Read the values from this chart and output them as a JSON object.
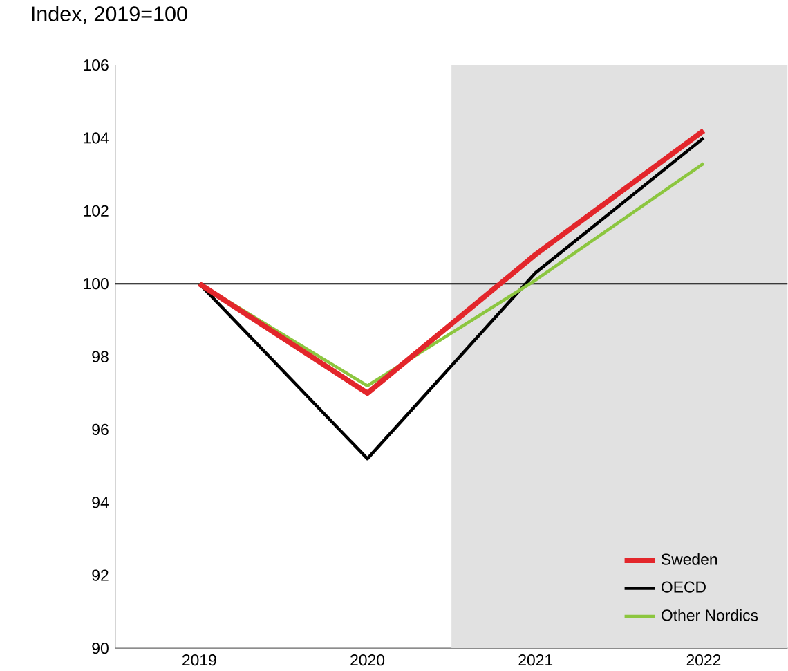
{
  "chart_data": {
    "type": "line",
    "ylabel": "Index, 2019=100",
    "x": [
      2019,
      2020,
      2021,
      2022
    ],
    "series": [
      {
        "name": "Sweden",
        "color": "#e3262b",
        "values": [
          100,
          97.0,
          100.8,
          104.2
        ]
      },
      {
        "name": "OECD",
        "color": "#000000",
        "values": [
          100,
          95.2,
          100.3,
          104.0
        ]
      },
      {
        "name": "Other Nordics",
        "color": "#8cc63f",
        "values": [
          100,
          97.2,
          100.1,
          103.3
        ]
      }
    ],
    "xlim": [
      2018.5,
      2022.5
    ],
    "xticks": [
      2019,
      2020,
      2021,
      2022
    ],
    "ylim": [
      90,
      106
    ],
    "yticks": [
      90,
      92,
      94,
      96,
      98,
      100,
      102,
      104,
      106
    ],
    "ref_lines": [
      {
        "axis": "y",
        "value": 100,
        "color": "#000000"
      }
    ],
    "bands": [
      {
        "axis": "x",
        "from": 2020.5,
        "to": 2022.5,
        "color": "#e1e1e1"
      }
    ],
    "legend": "bottom right",
    "grid": false,
    "marker": "none",
    "line_style": "solid"
  }
}
